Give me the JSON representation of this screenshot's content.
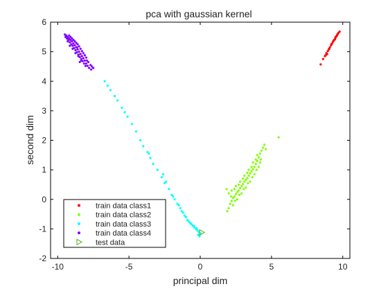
{
  "chart_data": {
    "type": "scatter",
    "title": "pca with gaussian kernel",
    "xlabel": "principal dim",
    "ylabel": "second dim",
    "xlim": [
      -10.5,
      10.5
    ],
    "ylim": [
      -2,
      6
    ],
    "xticks": [
      -10,
      -5,
      0,
      5,
      10
    ],
    "yticks": [
      -2,
      -1,
      0,
      1,
      2,
      3,
      4,
      5,
      6
    ],
    "xtick_labels": [
      "-10",
      "-5",
      "0",
      "5",
      "10"
    ],
    "ytick_labels": [
      "-2",
      "-1",
      "0",
      "1",
      "2",
      "3",
      "4",
      "5",
      "6"
    ],
    "grid": false,
    "legend_position": "bottom-left",
    "series": [
      {
        "name": "train data class1",
        "color": "#ff0000",
        "marker": "dot",
        "points": [
          [
            8.45,
            4.57
          ],
          [
            8.62,
            4.75
          ],
          [
            8.75,
            4.85
          ],
          [
            8.85,
            4.95
          ],
          [
            8.95,
            5.02
          ],
          [
            9.02,
            5.08
          ],
          [
            9.1,
            5.15
          ],
          [
            9.18,
            5.22
          ],
          [
            9.25,
            5.28
          ],
          [
            9.32,
            5.34
          ],
          [
            9.4,
            5.4
          ],
          [
            9.48,
            5.46
          ],
          [
            9.55,
            5.52
          ],
          [
            9.62,
            5.58
          ],
          [
            9.7,
            5.64
          ],
          [
            9.78,
            5.68
          ],
          [
            9.05,
            5.1
          ],
          [
            9.2,
            5.25
          ],
          [
            9.35,
            5.37
          ],
          [
            9.5,
            5.5
          ],
          [
            9.65,
            5.6
          ],
          [
            8.9,
            4.92
          ],
          [
            9.6,
            5.55
          ],
          [
            9.45,
            5.42
          ],
          [
            8.8,
            4.88
          ]
        ]
      },
      {
        "name": "train data class2",
        "color": "#80ff00",
        "marker": "dot",
        "points": [
          [
            1.9,
            -0.4
          ],
          [
            2.0,
            -0.3
          ],
          [
            2.1,
            -0.15
          ],
          [
            2.2,
            -0.05
          ],
          [
            2.3,
            0.05
          ],
          [
            2.4,
            0.1
          ],
          [
            2.5,
            0.18
          ],
          [
            2.6,
            0.25
          ],
          [
            2.7,
            0.3
          ],
          [
            2.8,
            0.38
          ],
          [
            2.9,
            0.45
          ],
          [
            3.0,
            0.52
          ],
          [
            3.1,
            0.6
          ],
          [
            3.2,
            0.66
          ],
          [
            3.3,
            0.72
          ],
          [
            3.4,
            0.8
          ],
          [
            3.5,
            0.88
          ],
          [
            3.6,
            0.95
          ],
          [
            3.7,
            1.02
          ],
          [
            3.8,
            1.1
          ],
          [
            3.9,
            1.2
          ],
          [
            4.0,
            1.3
          ],
          [
            4.1,
            1.42
          ],
          [
            4.2,
            1.55
          ],
          [
            4.3,
            1.65
          ],
          [
            4.4,
            1.75
          ],
          [
            4.5,
            1.85
          ],
          [
            5.5,
            2.1
          ],
          [
            2.2,
            0.3
          ],
          [
            2.5,
            0.45
          ],
          [
            2.8,
            0.6
          ],
          [
            3.1,
            0.8
          ],
          [
            3.4,
            1.0
          ],
          [
            3.7,
            1.25
          ],
          [
            4.0,
            1.5
          ],
          [
            2.3,
            -0.2
          ],
          [
            2.6,
            0.0
          ],
          [
            2.9,
            0.2
          ],
          [
            3.2,
            0.4
          ],
          [
            3.5,
            0.6
          ],
          [
            3.8,
            0.85
          ],
          [
            4.1,
            1.1
          ],
          [
            1.85,
            0.35
          ],
          [
            2.0,
            0.2
          ],
          [
            2.4,
            0.35
          ],
          [
            2.7,
            0.5
          ],
          [
            3.0,
            0.7
          ],
          [
            3.3,
            0.9
          ],
          [
            3.6,
            1.1
          ],
          [
            3.9,
            1.35
          ],
          [
            4.2,
            1.25
          ],
          [
            4.6,
            1.7
          ],
          [
            2.15,
            0.1
          ],
          [
            2.45,
            -0.05
          ],
          [
            2.75,
            0.15
          ],
          [
            3.05,
            0.35
          ],
          [
            3.35,
            0.55
          ],
          [
            3.65,
            0.75
          ],
          [
            3.95,
            1.0
          ],
          [
            4.25,
            1.35
          ]
        ]
      },
      {
        "name": "train data class3",
        "color": "#00ffff",
        "marker": "dot",
        "points": [
          [
            -6.7,
            4.0
          ],
          [
            -6.5,
            3.85
          ],
          [
            -6.3,
            3.7
          ],
          [
            -6.0,
            3.5
          ],
          [
            -5.8,
            3.35
          ],
          [
            -5.5,
            3.1
          ],
          [
            -5.3,
            2.95
          ],
          [
            -5.1,
            2.8
          ],
          [
            -4.8,
            2.55
          ],
          [
            -4.5,
            2.3
          ],
          [
            -4.2,
            2.0
          ],
          [
            -4.0,
            1.8
          ],
          [
            -3.7,
            1.6
          ],
          [
            -3.5,
            1.4
          ],
          [
            -3.3,
            1.2
          ],
          [
            -3.0,
            1.0
          ],
          [
            -2.7,
            0.75
          ],
          [
            -2.5,
            0.55
          ],
          [
            -2.2,
            0.35
          ],
          [
            -2.0,
            0.15
          ],
          [
            -1.8,
            0.0
          ],
          [
            -1.6,
            -0.15
          ],
          [
            -1.4,
            -0.3
          ],
          [
            -1.2,
            -0.45
          ],
          [
            -1.0,
            -0.6
          ],
          [
            -0.8,
            -0.75
          ],
          [
            -0.6,
            -0.85
          ],
          [
            -0.4,
            -0.95
          ],
          [
            -0.2,
            -1.05
          ],
          [
            -0.1,
            -1.1
          ],
          [
            0.0,
            -1.15
          ],
          [
            -0.3,
            -1.0
          ],
          [
            -0.5,
            -0.9
          ],
          [
            -0.7,
            -0.8
          ],
          [
            -0.9,
            -0.7
          ],
          [
            -1.1,
            -0.55
          ],
          [
            -1.3,
            -0.4
          ],
          [
            -1.5,
            -0.2
          ],
          [
            -0.15,
            -1.2
          ],
          [
            -0.05,
            -1.25
          ],
          [
            -3.6,
            1.55
          ],
          [
            -2.6,
            0.85
          ],
          [
            -2.4,
            0.6
          ],
          [
            -1.9,
            0.1
          ],
          [
            -0.25,
            -0.98
          ],
          [
            -0.45,
            -0.9
          ],
          [
            -0.65,
            -0.82
          ]
        ]
      },
      {
        "name": "train data class4",
        "color": "#8000ff",
        "marker": "dot",
        "points": [
          [
            -9.5,
            5.58
          ],
          [
            -9.4,
            5.55
          ],
          [
            -9.3,
            5.5
          ],
          [
            -9.2,
            5.45
          ],
          [
            -9.1,
            5.4
          ],
          [
            -9.0,
            5.35
          ],
          [
            -8.9,
            5.28
          ],
          [
            -8.8,
            5.22
          ],
          [
            -8.7,
            5.15
          ],
          [
            -8.6,
            5.08
          ],
          [
            -8.5,
            5.0
          ],
          [
            -8.4,
            4.92
          ],
          [
            -8.3,
            4.85
          ],
          [
            -8.2,
            4.78
          ],
          [
            -8.1,
            4.7
          ],
          [
            -8.0,
            4.6
          ],
          [
            -7.9,
            4.52
          ],
          [
            -7.8,
            4.45
          ],
          [
            -7.6,
            4.5
          ],
          [
            -7.5,
            4.45
          ],
          [
            -9.35,
            5.45
          ],
          [
            -9.25,
            5.4
          ],
          [
            -9.15,
            5.32
          ],
          [
            -9.05,
            5.25
          ],
          [
            -8.95,
            5.2
          ],
          [
            -8.85,
            5.12
          ],
          [
            -8.75,
            5.05
          ],
          [
            -8.65,
            4.98
          ],
          [
            -8.55,
            4.9
          ],
          [
            -8.45,
            4.82
          ],
          [
            -8.35,
            4.75
          ],
          [
            -8.25,
            4.68
          ],
          [
            -9.45,
            5.5
          ],
          [
            -9.0,
            5.45
          ],
          [
            -8.8,
            5.35
          ],
          [
            -8.6,
            5.25
          ],
          [
            -8.4,
            5.1
          ],
          [
            -8.2,
            4.95
          ],
          [
            -8.0,
            4.8
          ],
          [
            -7.85,
            4.65
          ],
          [
            -9.2,
            5.55
          ],
          [
            -9.1,
            5.5
          ],
          [
            -8.9,
            5.4
          ],
          [
            -8.7,
            5.3
          ],
          [
            -8.5,
            5.18
          ],
          [
            -8.3,
            5.02
          ],
          [
            -8.1,
            4.88
          ],
          [
            -7.95,
            4.7
          ],
          [
            -7.7,
            4.55
          ],
          [
            -8.15,
            4.6
          ],
          [
            -8.35,
            4.7
          ],
          [
            -8.55,
            4.85
          ],
          [
            -8.75,
            4.95
          ],
          [
            -8.95,
            5.1
          ],
          [
            -9.15,
            5.2
          ],
          [
            -9.3,
            5.35
          ],
          [
            -7.65,
            4.4
          ],
          [
            -8.05,
            4.52
          ],
          [
            -8.45,
            4.65
          ],
          [
            -8.65,
            5.15
          ]
        ]
      },
      {
        "name": "test data",
        "color": "#4caf1a",
        "marker": "triangle-right",
        "points": [
          [
            0.1,
            -1.12
          ]
        ]
      }
    ]
  }
}
